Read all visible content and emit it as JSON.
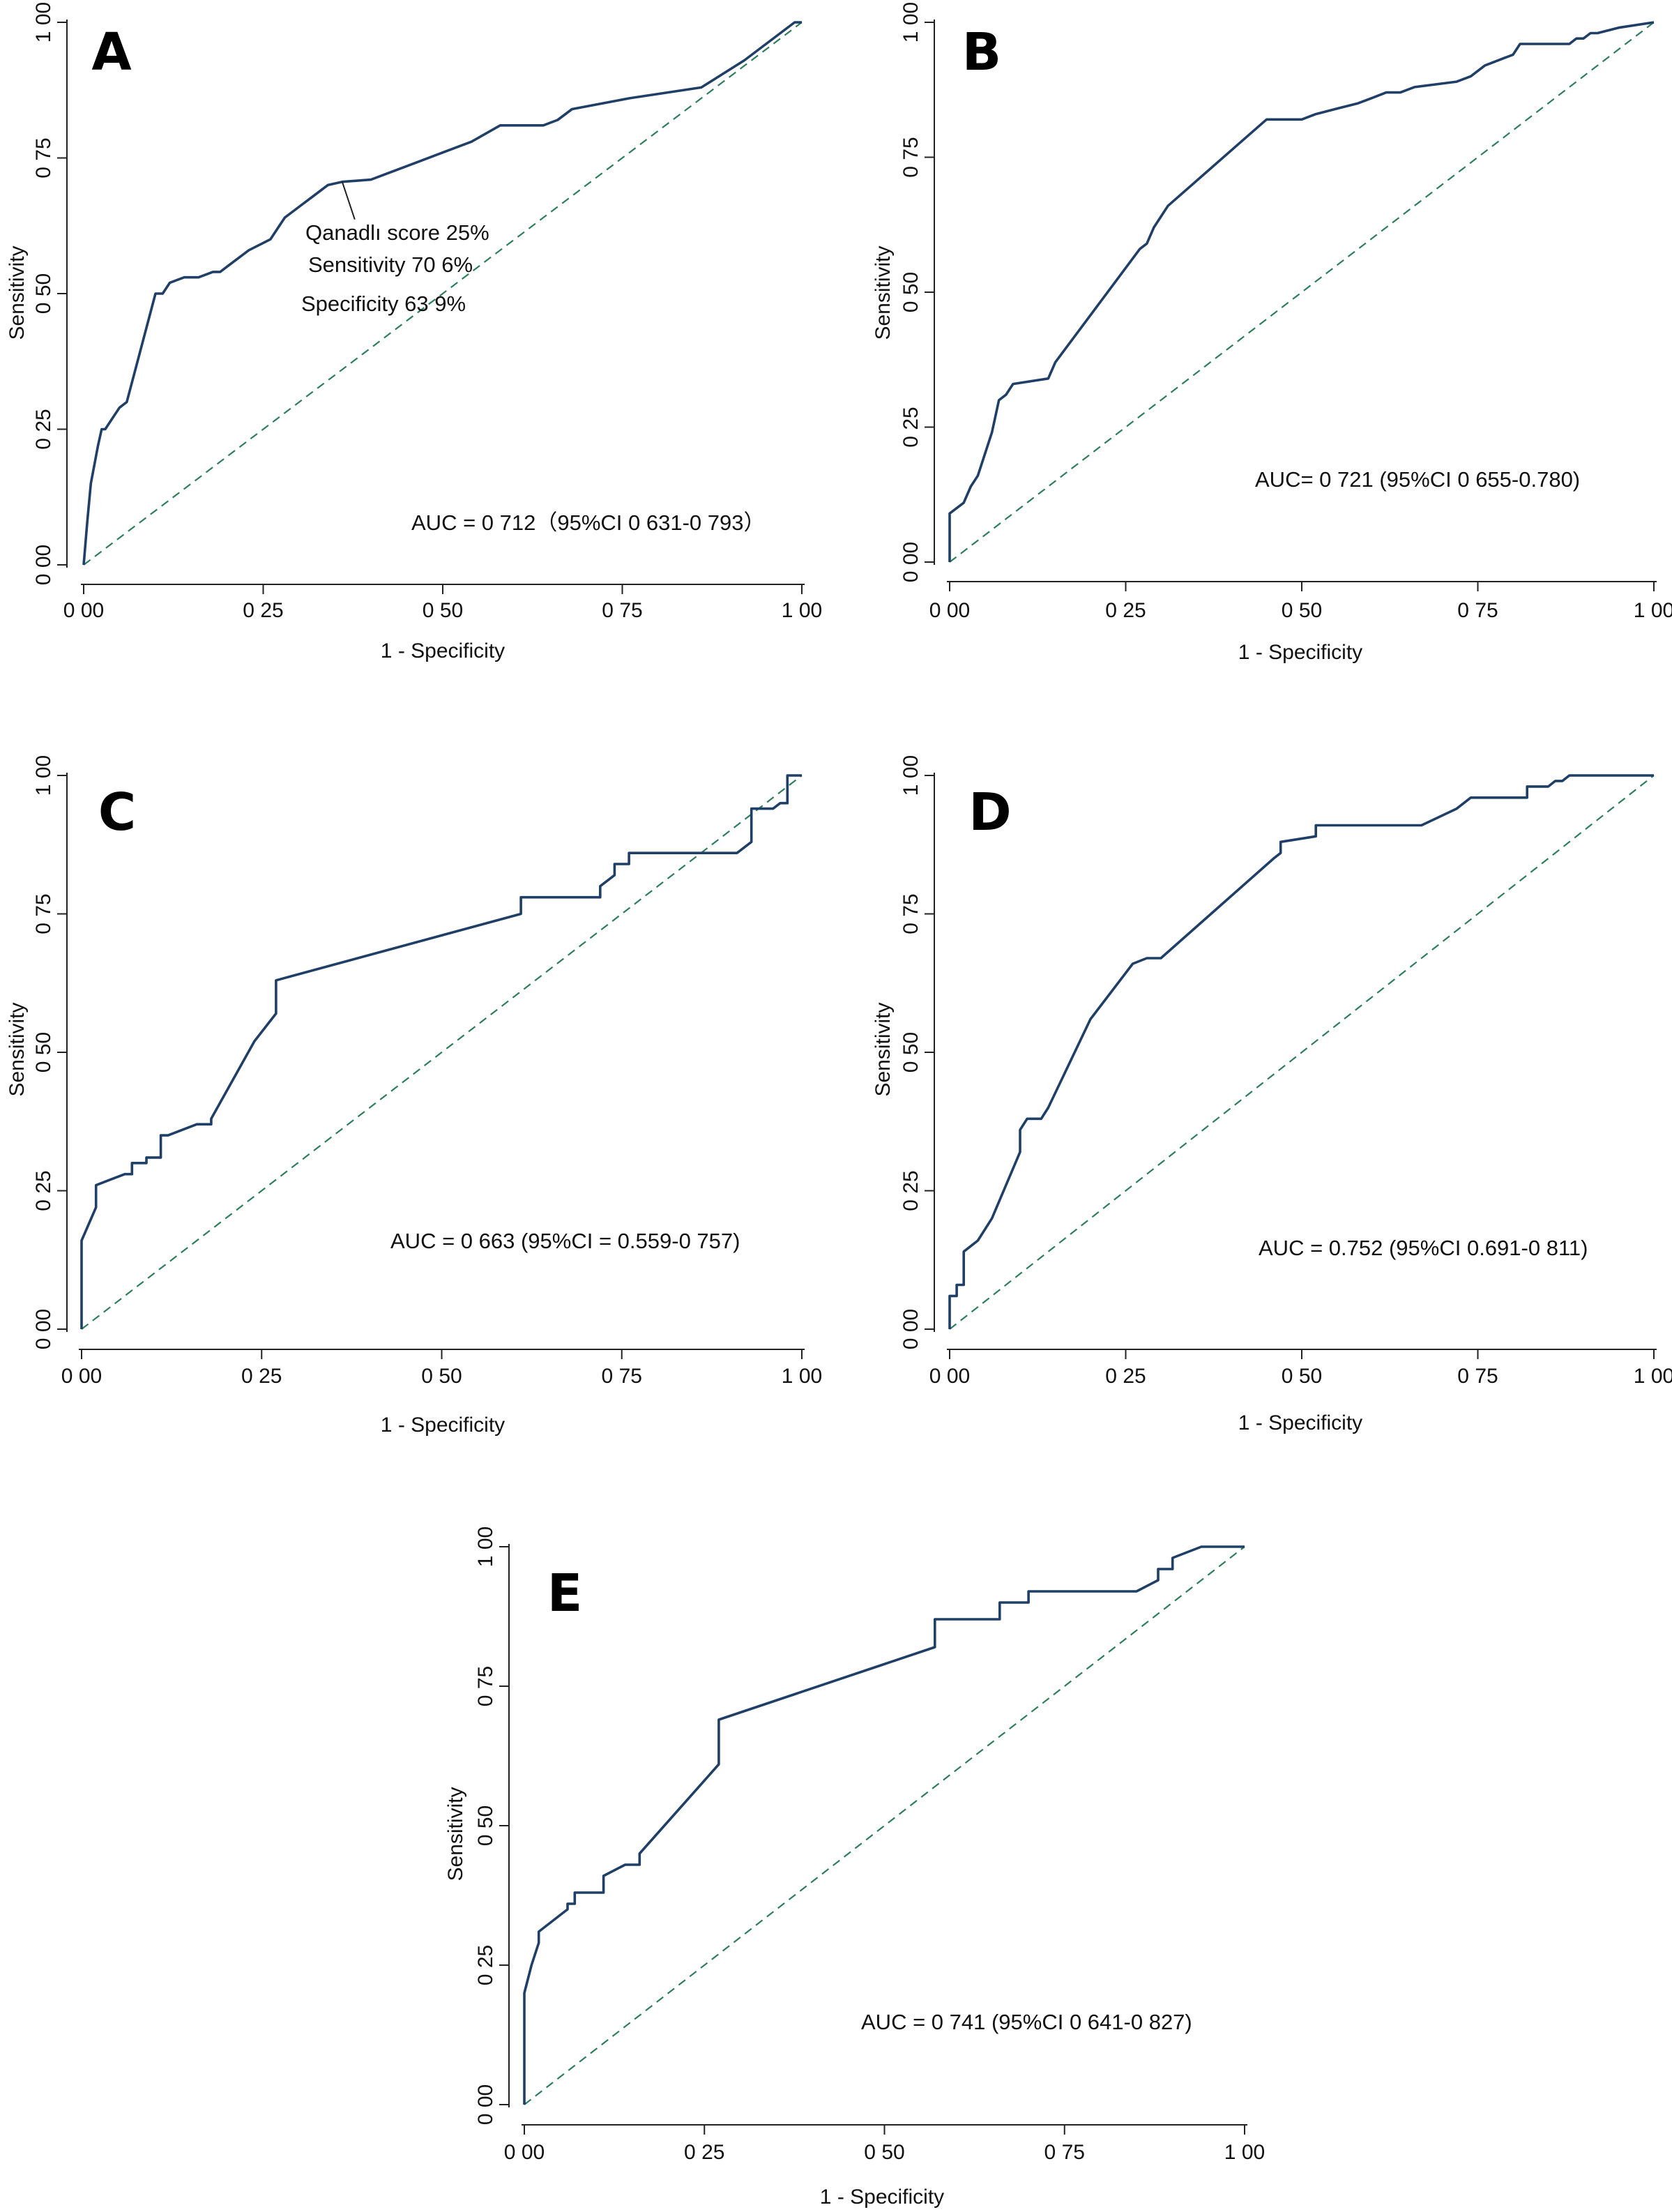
{
  "colors": {
    "roc_curve": "#1f3f66",
    "reference_line": "#2e7d5b",
    "axis": "#222222",
    "text": "#111111"
  },
  "chart_data": [
    {
      "type": "line",
      "panel_label": "A",
      "xlabel": "1 - Specificity",
      "ylabel": "Sensitivity",
      "xlim": [
        0,
        1
      ],
      "ylim": [
        0,
        1
      ],
      "x_ticks": [
        "0 00",
        "0 25",
        "0 50",
        "0 75",
        "1 00"
      ],
      "y_ticks": [
        "0 00",
        "0 25",
        "0 50",
        "0 75",
        "1 00"
      ],
      "grid": false,
      "annotation": "AUC = 0 712（95%CI 0 631-0 793）",
      "cutoff_note": [
        "Qanadlı score  25%",
        "Sensitivity  70 6%",
        "Specificity  63 9%"
      ],
      "cutoff_point": [
        0.36,
        0.706
      ],
      "series": [
        {
          "x": [
            0,
            0.005,
            0.01,
            0.02,
            0.025,
            0.03,
            0.04,
            0.05,
            0.06,
            0.08,
            0.1,
            0.11,
            0.12,
            0.14,
            0.16,
            0.18,
            0.19,
            0.2,
            0.23,
            0.26,
            0.27,
            0.28,
            0.3,
            0.32,
            0.34,
            0.36,
            0.4,
            0.42,
            0.46,
            0.5,
            0.54,
            0.58,
            0.6,
            0.64,
            0.66,
            0.68,
            0.76,
            0.86,
            0.92,
            0.99,
            1
          ],
          "y": [
            0,
            0.08,
            0.15,
            0.22,
            0.25,
            0.25,
            0.27,
            0.29,
            0.3,
            0.4,
            0.5,
            0.5,
            0.52,
            0.53,
            0.53,
            0.54,
            0.54,
            0.55,
            0.58,
            0.6,
            0.62,
            0.64,
            0.66,
            0.68,
            0.7,
            0.706,
            0.71,
            0.72,
            0.74,
            0.76,
            0.78,
            0.81,
            0.81,
            0.81,
            0.82,
            0.84,
            0.86,
            0.88,
            0.93,
            1,
            1
          ]
        }
      ]
    },
    {
      "type": "line",
      "panel_label": "B",
      "xlabel": "1 - Specificity",
      "ylabel": "Sensitivity",
      "xlim": [
        0,
        1
      ],
      "ylim": [
        0,
        1
      ],
      "x_ticks": [
        "0 00",
        "0 25",
        "0 50",
        "0 75",
        "1 00"
      ],
      "y_ticks": [
        "0 00",
        "0 25",
        "0 50",
        "0 75",
        "1 00"
      ],
      "grid": false,
      "annotation": "AUC= 0 721 (95%CI 0 655-0.780)",
      "series": [
        {
          "x": [
            0,
            0,
            0.02,
            0.03,
            0.04,
            0.05,
            0.06,
            0.07,
            0.07,
            0.08,
            0.08,
            0.09,
            0.09,
            0.14,
            0.15,
            0.27,
            0.28,
            0.29,
            0.3,
            0.31,
            0.45,
            0.5,
            0.52,
            0.55,
            0.58,
            0.6,
            0.62,
            0.64,
            0.66,
            0.72,
            0.74,
            0.76,
            0.8,
            0.81,
            0.88,
            0.89,
            0.9,
            0.91,
            0.92,
            0.95,
            1
          ],
          "y": [
            0,
            0.09,
            0.11,
            0.14,
            0.16,
            0.2,
            0.24,
            0.3,
            0.3,
            0.31,
            0.31,
            0.33,
            0.33,
            0.34,
            0.37,
            0.58,
            0.59,
            0.62,
            0.64,
            0.66,
            0.82,
            0.82,
            0.83,
            0.84,
            0.85,
            0.86,
            0.87,
            0.87,
            0.88,
            0.89,
            0.9,
            0.92,
            0.94,
            0.96,
            0.96,
            0.97,
            0.97,
            0.98,
            0.98,
            0.99,
            1
          ]
        }
      ]
    },
    {
      "type": "line",
      "panel_label": "C",
      "xlabel": "1 - Specificity",
      "ylabel": "Sensitivity",
      "xlim": [
        0,
        1
      ],
      "ylim": [
        0,
        1
      ],
      "x_ticks": [
        "0 00",
        "0 25",
        "0 50",
        "0 75",
        "1 00"
      ],
      "y_ticks": [
        "0 00",
        "0 25",
        "0 50",
        "0 75",
        "1 00"
      ],
      "grid": false,
      "annotation": "AUC = 0 663 (95%CI = 0.559-0 757)",
      "series": [
        {
          "x": [
            0,
            0,
            0.02,
            0.02,
            0.04,
            0.06,
            0.07,
            0.07,
            0.09,
            0.09,
            0.11,
            0.11,
            0.12,
            0.16,
            0.18,
            0.18,
            0.24,
            0.27,
            0.27,
            0.61,
            0.61,
            0.72,
            0.72,
            0.74,
            0.74,
            0.76,
            0.76,
            0.91,
            0.93,
            0.93,
            0.96,
            0.97,
            0.98,
            0.98,
            1
          ],
          "y": [
            0,
            0.16,
            0.22,
            0.26,
            0.27,
            0.28,
            0.28,
            0.3,
            0.3,
            0.31,
            0.31,
            0.35,
            0.35,
            0.37,
            0.37,
            0.38,
            0.52,
            0.57,
            0.63,
            0.75,
            0.78,
            0.78,
            0.8,
            0.82,
            0.84,
            0.84,
            0.86,
            0.86,
            0.88,
            0.94,
            0.94,
            0.95,
            0.95,
            1,
            1
          ]
        }
      ]
    },
    {
      "type": "line",
      "panel_label": "D",
      "xlabel": "1 - Specificity",
      "ylabel": "Sensitivity",
      "xlim": [
        0,
        1
      ],
      "ylim": [
        0,
        1
      ],
      "x_ticks": [
        "0 00",
        "0 25",
        "0 50",
        "0 75",
        "1 00"
      ],
      "y_ticks": [
        "0 00",
        "0 25",
        "0 50",
        "0 75",
        "1 00"
      ],
      "grid": false,
      "annotation": "AUC = 0.752 (95%CI 0.691-0 811)",
      "series": [
        {
          "x": [
            0,
            0,
            0.01,
            0.01,
            0.02,
            0.02,
            0.04,
            0.05,
            0.06,
            0.08,
            0.1,
            0.1,
            0.11,
            0.13,
            0.14,
            0.2,
            0.26,
            0.28,
            0.3,
            0.46,
            0.47,
            0.47,
            0.52,
            0.52,
            0.67,
            0.72,
            0.74,
            0.82,
            0.82,
            0.85,
            0.86,
            0.87,
            0.88,
            1
          ],
          "y": [
            0,
            0.06,
            0.06,
            0.08,
            0.08,
            0.14,
            0.16,
            0.18,
            0.2,
            0.26,
            0.32,
            0.36,
            0.38,
            0.38,
            0.4,
            0.56,
            0.66,
            0.67,
            0.67,
            0.85,
            0.86,
            0.88,
            0.89,
            0.91,
            0.91,
            0.94,
            0.96,
            0.96,
            0.98,
            0.98,
            0.99,
            0.99,
            1,
            1
          ]
        }
      ]
    },
    {
      "type": "line",
      "panel_label": "E",
      "xlabel": "1 - Specificity",
      "ylabel": "Sensitivity",
      "xlim": [
        0,
        1
      ],
      "ylim": [
        0,
        1
      ],
      "x_ticks": [
        "0 00",
        "0 25",
        "0 50",
        "0 75",
        "1 00"
      ],
      "y_ticks": [
        "0 00",
        "0 25",
        "0 50",
        "0 75",
        "1 00"
      ],
      "grid": false,
      "annotation": "AUC = 0 741 (95%CI 0 641-0 827)",
      "series": [
        {
          "x": [
            0,
            0,
            0.01,
            0.02,
            0.02,
            0.04,
            0.05,
            0.06,
            0.06,
            0.07,
            0.07,
            0.11,
            0.11,
            0.14,
            0.16,
            0.16,
            0.27,
            0.27,
            0.57,
            0.57,
            0.66,
            0.66,
            0.7,
            0.7,
            0.85,
            0.88,
            0.88,
            0.9,
            0.9,
            0.94,
            0.96,
            1
          ],
          "y": [
            0,
            0.2,
            0.25,
            0.29,
            0.31,
            0.33,
            0.34,
            0.35,
            0.36,
            0.36,
            0.38,
            0.38,
            0.41,
            0.43,
            0.43,
            0.45,
            0.61,
            0.69,
            0.82,
            0.87,
            0.87,
            0.9,
            0.9,
            0.92,
            0.92,
            0.94,
            0.96,
            0.96,
            0.98,
            1,
            1,
            1
          ]
        }
      ]
    }
  ]
}
